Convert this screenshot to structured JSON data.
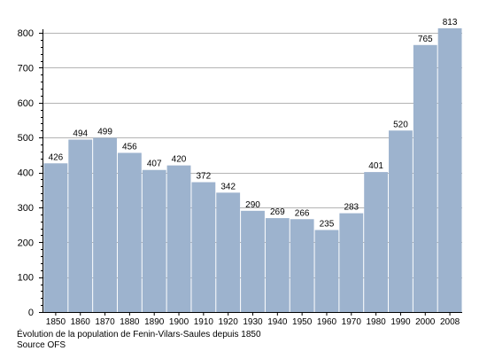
{
  "chart_data": {
    "type": "bar",
    "categories": [
      "1850",
      "1860",
      "1870",
      "1880",
      "1890",
      "1900",
      "1910",
      "1920",
      "1930",
      "1940",
      "1950",
      "1960",
      "1970",
      "1980",
      "1990",
      "2000",
      "2008"
    ],
    "values": [
      426,
      494,
      499,
      456,
      407,
      420,
      372,
      342,
      290,
      269,
      266,
      235,
      283,
      401,
      520,
      765,
      813
    ],
    "ylim": [
      0,
      800
    ],
    "yticks": [
      0,
      100,
      200,
      300,
      400,
      500,
      600,
      700,
      800
    ],
    "title": "",
    "xlabel": "",
    "ylabel": "",
    "grid": true,
    "legend": "none",
    "bar_color": "#9db3ce",
    "grid_color": "#b4b4b4"
  },
  "caption": "Évolution de la population de Fenin-Vilars-Saules depuis 1850",
  "source": "Source OFS"
}
